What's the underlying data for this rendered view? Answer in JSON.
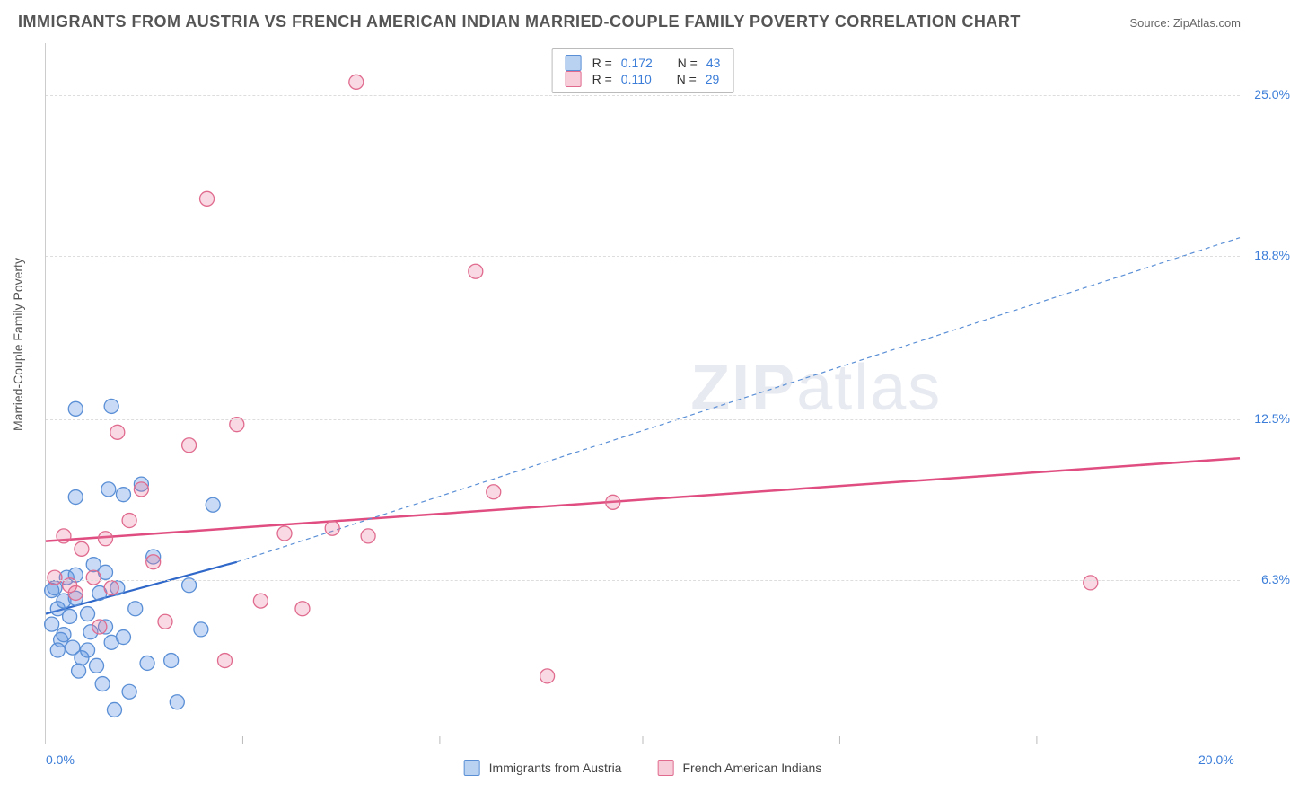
{
  "title": "IMMIGRANTS FROM AUSTRIA VS FRENCH AMERICAN INDIAN MARRIED-COUPLE FAMILY POVERTY CORRELATION CHART",
  "source_label": "Source: ZipAtlas.com",
  "watermark_zip": "ZIP",
  "watermark_atlas": "atlas",
  "ylabel": "Married-Couple Family Poverty",
  "chart": {
    "type": "scatter",
    "xlim": [
      0,
      20
    ],
    "ylim": [
      0,
      27
    ],
    "x_ticks": [
      0,
      20
    ],
    "x_tick_labels": [
      "0.0%",
      "20.0%"
    ],
    "x_minor_ticks": [
      3.3,
      6.6,
      10,
      13.3,
      16.6
    ],
    "y_ticks": [
      6.3,
      12.5,
      18.8,
      25.0
    ],
    "y_tick_labels": [
      "6.3%",
      "12.5%",
      "18.8%",
      "25.0%"
    ],
    "background_color": "#ffffff",
    "grid_color": "#dddddd",
    "marker_radius": 8,
    "marker_stroke_width": 1.3,
    "series": [
      {
        "name": "Immigrants from Austria",
        "color_fill": "rgba(96,150,225,0.35)",
        "color_stroke": "#5a8fd6",
        "swatch_fill": "#b9d2f2",
        "swatch_border": "#5a8fd6",
        "r_value": "0.172",
        "n_value": "43",
        "trend": {
          "x1": 0,
          "y1": 5.0,
          "x2": 3.2,
          "y2": 7.0,
          "color": "#2f68c9",
          "width": 2.2,
          "dash": "none"
        },
        "trend_ext": {
          "x1": 3.2,
          "y1": 7.0,
          "x2": 20,
          "y2": 19.5,
          "color": "#5a8fd6",
          "width": 1.2,
          "dash": "5,4"
        },
        "points": [
          [
            0.1,
            4.6
          ],
          [
            0.15,
            6.0
          ],
          [
            0.2,
            5.2
          ],
          [
            0.25,
            4.0
          ],
          [
            0.3,
            5.5
          ],
          [
            0.35,
            6.4
          ],
          [
            0.3,
            4.2
          ],
          [
            0.4,
            4.9
          ],
          [
            0.45,
            3.7
          ],
          [
            0.5,
            5.6
          ],
          [
            0.55,
            2.8
          ],
          [
            0.6,
            3.3
          ],
          [
            0.5,
            6.5
          ],
          [
            0.7,
            5.0
          ],
          [
            0.75,
            4.3
          ],
          [
            0.8,
            6.9
          ],
          [
            0.85,
            3.0
          ],
          [
            0.9,
            5.8
          ],
          [
            0.95,
            2.3
          ],
          [
            1.0,
            4.5
          ],
          [
            1.05,
            9.8
          ],
          [
            1.1,
            3.9
          ],
          [
            1.15,
            1.3
          ],
          [
            1.2,
            6.0
          ],
          [
            1.3,
            4.1
          ],
          [
            1.4,
            2.0
          ],
          [
            1.5,
            5.2
          ],
          [
            1.6,
            10.0
          ],
          [
            1.7,
            3.1
          ],
          [
            1.8,
            7.2
          ],
          [
            0.5,
            12.9
          ],
          [
            1.1,
            13.0
          ],
          [
            0.5,
            9.5
          ],
          [
            1.3,
            9.6
          ],
          [
            2.1,
            3.2
          ],
          [
            2.2,
            1.6
          ],
          [
            2.4,
            6.1
          ],
          [
            2.6,
            4.4
          ],
          [
            2.8,
            9.2
          ],
          [
            0.2,
            3.6
          ],
          [
            0.1,
            5.9
          ],
          [
            0.7,
            3.6
          ],
          [
            1.0,
            6.6
          ]
        ]
      },
      {
        "name": "French American Indians",
        "color_fill": "rgba(235,120,155,0.28)",
        "color_stroke": "#e06b8f",
        "swatch_fill": "#f6cdd9",
        "swatch_border": "#e06b8f",
        "r_value": "0.110",
        "n_value": "29",
        "trend": {
          "x1": 0,
          "y1": 7.8,
          "x2": 20,
          "y2": 11.0,
          "color": "#e04d80",
          "width": 2.5,
          "dash": "none"
        },
        "points": [
          [
            0.15,
            6.4
          ],
          [
            0.3,
            8.0
          ],
          [
            0.4,
            6.1
          ],
          [
            0.6,
            7.5
          ],
          [
            0.8,
            6.4
          ],
          [
            1.0,
            7.9
          ],
          [
            1.2,
            12.0
          ],
          [
            1.4,
            8.6
          ],
          [
            1.6,
            9.8
          ],
          [
            1.8,
            7.0
          ],
          [
            2.0,
            4.7
          ],
          [
            2.4,
            11.5
          ],
          [
            2.7,
            21.0
          ],
          [
            3.0,
            3.2
          ],
          [
            3.2,
            12.3
          ],
          [
            3.6,
            5.5
          ],
          [
            4.0,
            8.1
          ],
          [
            4.3,
            5.2
          ],
          [
            4.8,
            8.3
          ],
          [
            5.2,
            25.5
          ],
          [
            5.4,
            8.0
          ],
          [
            7.2,
            18.2
          ],
          [
            7.5,
            9.7
          ],
          [
            8.4,
            2.6
          ],
          [
            9.5,
            9.3
          ],
          [
            17.5,
            6.2
          ],
          [
            0.5,
            5.8
          ],
          [
            1.1,
            6.0
          ],
          [
            0.9,
            4.5
          ]
        ]
      }
    ]
  },
  "legend_bottom": [
    {
      "label": "Immigrants from Austria",
      "fill": "#b9d2f2",
      "border": "#5a8fd6"
    },
    {
      "label": "French American Indians",
      "fill": "#f6cdd9",
      "border": "#e06b8f"
    }
  ],
  "r_label": "R =",
  "n_label": "N ="
}
